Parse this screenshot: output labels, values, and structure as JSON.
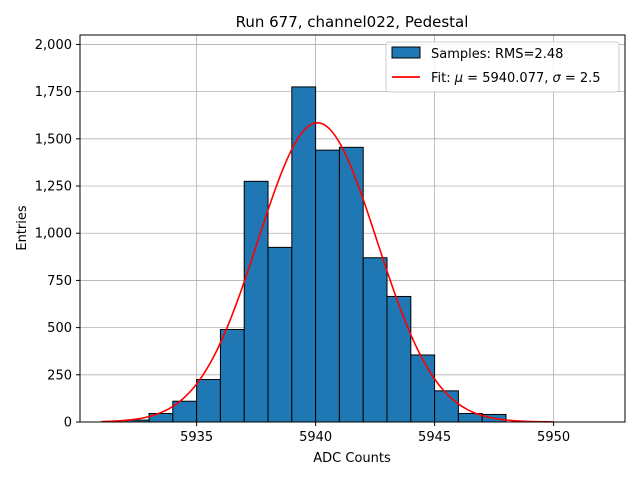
{
  "chart_data": {
    "type": "bar",
    "title": "Run 677, channel022, Pedestal",
    "xlabel": "ADC Counts",
    "ylabel": "Entries",
    "xlim": [
      5930.1,
      5953.0
    ],
    "ylim": [
      0,
      2050
    ],
    "xticks": [
      5935,
      5940,
      5945,
      5950
    ],
    "yticks": [
      0,
      250,
      500,
      750,
      1000,
      1250,
      1500,
      1750,
      2000
    ],
    "grid": true,
    "legend_position": "top-right",
    "histogram": {
      "name": "Samples: RMS=2.48",
      "color": "#1f77b4",
      "bin_width": 1,
      "bins": [
        {
          "start": 5932,
          "value": 10
        },
        {
          "start": 5933,
          "value": 45
        },
        {
          "start": 5934,
          "value": 110
        },
        {
          "start": 5935,
          "value": 225
        },
        {
          "start": 5936,
          "value": 490
        },
        {
          "start": 5937,
          "value": 1275
        },
        {
          "start": 5938,
          "value": 925
        },
        {
          "start": 5939,
          "value": 1775
        },
        {
          "start": 5940,
          "value": 1440
        },
        {
          "start": 5941,
          "value": 1455
        },
        {
          "start": 5942,
          "value": 870
        },
        {
          "start": 5943,
          "value": 665
        },
        {
          "start": 5944,
          "value": 355
        },
        {
          "start": 5945,
          "value": 165
        },
        {
          "start": 5946,
          "value": 45
        },
        {
          "start": 5947,
          "value": 40
        }
      ]
    },
    "fit": {
      "name_prefix": "Fit: ",
      "mu_symbol": "μ",
      "mu_text": " = 5940.077, ",
      "sigma_symbol": "σ",
      "sigma_text": " = 2.5",
      "color": "#ff0000",
      "mu": 5940.077,
      "sigma": 2.5,
      "amplitude": 1585,
      "x_range": [
        5931,
        5950
      ]
    }
  }
}
